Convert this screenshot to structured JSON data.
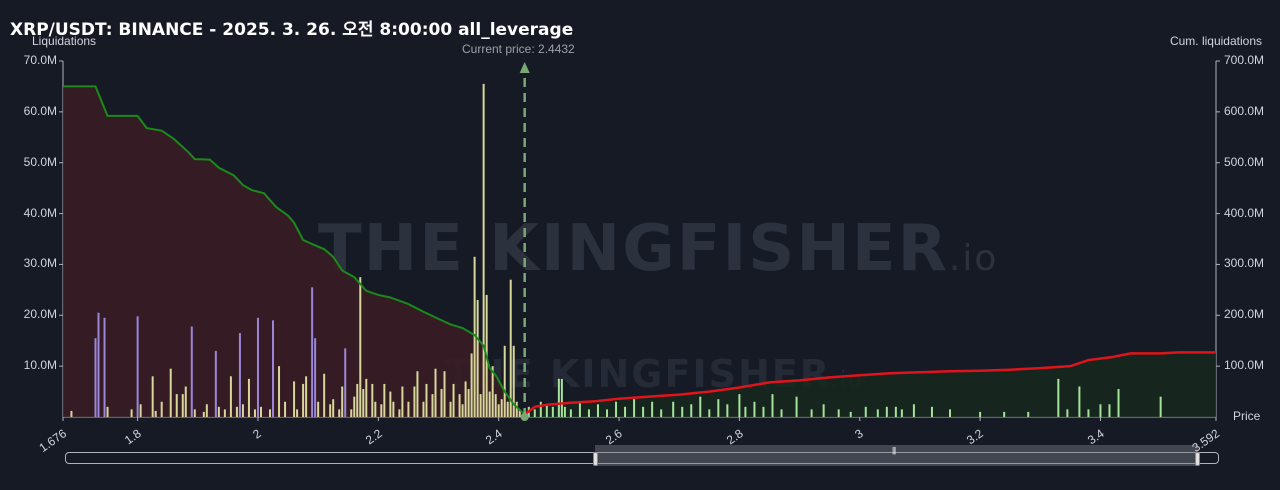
{
  "title": "XRP/USDT: BINANCE - 2025. 3. 26. 오전 8:00:00 all_leverage",
  "watermark": {
    "main": "THE KINGFISHER",
    "suffix": ".io"
  },
  "colors": {
    "background": "#161a25",
    "long_cum_line": "#1a8a1a",
    "short_cum_line": "#e0141a",
    "long_area": "#3a1c24",
    "short_area": "#16291e",
    "bar_yellow": "#d8d79a",
    "bar_purple": "#9b86d8",
    "bar_green": "#a6e39a",
    "current_price_line": "#7aa872"
  },
  "chart_data": {
    "type": "bar",
    "title": "XRP/USDT: BINANCE - 2025. 3. 26. 오전 8:00:00 all_leverage",
    "ylabel": "Liquidations",
    "y2label": "Cum. liquidations",
    "xlabel": "Price",
    "xlim": [
      1.676,
      3.592
    ],
    "ylim": [
      0,
      70000000
    ],
    "y2lim": [
      0,
      700000000
    ],
    "x_ticks": [
      "1.676",
      "1.8",
      "2",
      "2.2",
      "2.4",
      "2.6",
      "2.8",
      "3",
      "3.2",
      "3.4",
      "3.592"
    ],
    "x_tick_values": [
      1.676,
      1.8,
      2.0,
      2.2,
      2.4,
      2.6,
      2.8,
      3.0,
      3.2,
      3.4,
      3.592
    ],
    "y_ticks": [
      "10.0M",
      "20.0M",
      "30.0M",
      "40.0M",
      "50.0M",
      "60.0M",
      "70.0M"
    ],
    "y_tick_values": [
      10000000,
      20000000,
      30000000,
      40000000,
      50000000,
      60000000,
      70000000
    ],
    "y2_ticks": [
      "100.0M",
      "200.0M",
      "300.0M",
      "400.0M",
      "500.0M",
      "600.0M",
      "700.0M"
    ],
    "y2_tick_values": [
      100000000,
      200000000,
      300000000,
      400000000,
      500000000,
      600000000,
      700000000
    ],
    "current_price": 2.4432,
    "current_price_label": "Current price: 2.4432",
    "bars": [
      {
        "x": 1.69,
        "v": 1.2,
        "c": "y"
      },
      {
        "x": 1.73,
        "v": 15.5,
        "c": "p"
      },
      {
        "x": 1.735,
        "v": 20.5,
        "c": "p"
      },
      {
        "x": 1.745,
        "v": 19.5,
        "c": "p"
      },
      {
        "x": 1.75,
        "v": 2.0,
        "c": "y"
      },
      {
        "x": 1.79,
        "v": 1.5,
        "c": "y"
      },
      {
        "x": 1.8,
        "v": 19.8,
        "c": "p"
      },
      {
        "x": 1.805,
        "v": 2.5,
        "c": "y"
      },
      {
        "x": 1.825,
        "v": 8.0,
        "c": "y"
      },
      {
        "x": 1.83,
        "v": 1.2,
        "c": "y"
      },
      {
        "x": 1.84,
        "v": 3.0,
        "c": "y"
      },
      {
        "x": 1.855,
        "v": 9.5,
        "c": "y"
      },
      {
        "x": 1.865,
        "v": 4.5,
        "c": "y"
      },
      {
        "x": 1.875,
        "v": 4.5,
        "c": "y"
      },
      {
        "x": 1.88,
        "v": 6.0,
        "c": "y"
      },
      {
        "x": 1.89,
        "v": 17.8,
        "c": "p"
      },
      {
        "x": 1.895,
        "v": 1.5,
        "c": "y"
      },
      {
        "x": 1.91,
        "v": 1.0,
        "c": "y"
      },
      {
        "x": 1.915,
        "v": 2.5,
        "c": "y"
      },
      {
        "x": 1.93,
        "v": 13.0,
        "c": "p"
      },
      {
        "x": 1.935,
        "v": 2.0,
        "c": "y"
      },
      {
        "x": 1.945,
        "v": 1.5,
        "c": "y"
      },
      {
        "x": 1.955,
        "v": 8.0,
        "c": "y"
      },
      {
        "x": 1.965,
        "v": 2.0,
        "c": "y"
      },
      {
        "x": 1.97,
        "v": 16.5,
        "c": "p"
      },
      {
        "x": 1.975,
        "v": 2.5,
        "c": "y"
      },
      {
        "x": 1.985,
        "v": 7.5,
        "c": "y"
      },
      {
        "x": 1.995,
        "v": 1.5,
        "c": "y"
      },
      {
        "x": 2.0,
        "v": 19.5,
        "c": "p"
      },
      {
        "x": 2.005,
        "v": 2.0,
        "c": "y"
      },
      {
        "x": 2.02,
        "v": 1.5,
        "c": "y"
      },
      {
        "x": 2.025,
        "v": 19.0,
        "c": "p"
      },
      {
        "x": 2.035,
        "v": 10.0,
        "c": "y"
      },
      {
        "x": 2.045,
        "v": 3.0,
        "c": "y"
      },
      {
        "x": 2.06,
        "v": 7.0,
        "c": "y"
      },
      {
        "x": 2.065,
        "v": 1.5,
        "c": "y"
      },
      {
        "x": 2.075,
        "v": 6.5,
        "c": "y"
      },
      {
        "x": 2.08,
        "v": 8.0,
        "c": "y"
      },
      {
        "x": 2.09,
        "v": 25.5,
        "c": "p"
      },
      {
        "x": 2.095,
        "v": 15.5,
        "c": "p"
      },
      {
        "x": 2.1,
        "v": 3.0,
        "c": "y"
      },
      {
        "x": 2.11,
        "v": 8.5,
        "c": "y"
      },
      {
        "x": 2.12,
        "v": 2.5,
        "c": "y"
      },
      {
        "x": 2.125,
        "v": 3.5,
        "c": "y"
      },
      {
        "x": 2.135,
        "v": 1.5,
        "c": "y"
      },
      {
        "x": 2.14,
        "v": 6.0,
        "c": "y"
      },
      {
        "x": 2.145,
        "v": 13.5,
        "c": "p"
      },
      {
        "x": 2.155,
        "v": 1.5,
        "c": "y"
      },
      {
        "x": 2.16,
        "v": 4.0,
        "c": "y"
      },
      {
        "x": 2.165,
        "v": 6.5,
        "c": "y"
      },
      {
        "x": 2.17,
        "v": 27.5,
        "c": "y"
      },
      {
        "x": 2.175,
        "v": 5.5,
        "c": "y"
      },
      {
        "x": 2.18,
        "v": 7.5,
        "c": "y"
      },
      {
        "x": 2.19,
        "v": 6.5,
        "c": "y"
      },
      {
        "x": 2.195,
        "v": 3.0,
        "c": "y"
      },
      {
        "x": 2.205,
        "v": 2.5,
        "c": "y"
      },
      {
        "x": 2.21,
        "v": 6.5,
        "c": "y"
      },
      {
        "x": 2.22,
        "v": 5.0,
        "c": "y"
      },
      {
        "x": 2.225,
        "v": 3.0,
        "c": "y"
      },
      {
        "x": 2.235,
        "v": 1.5,
        "c": "y"
      },
      {
        "x": 2.24,
        "v": 6.0,
        "c": "y"
      },
      {
        "x": 2.25,
        "v": 3.0,
        "c": "y"
      },
      {
        "x": 2.26,
        "v": 6.0,
        "c": "y"
      },
      {
        "x": 2.265,
        "v": 9.0,
        "c": "y"
      },
      {
        "x": 2.275,
        "v": 3.0,
        "c": "y"
      },
      {
        "x": 2.28,
        "v": 6.5,
        "c": "y"
      },
      {
        "x": 2.29,
        "v": 4.5,
        "c": "y"
      },
      {
        "x": 2.295,
        "v": 9.5,
        "c": "y"
      },
      {
        "x": 2.305,
        "v": 5.5,
        "c": "y"
      },
      {
        "x": 2.31,
        "v": 9.0,
        "c": "y"
      },
      {
        "x": 2.32,
        "v": 3.0,
        "c": "y"
      },
      {
        "x": 2.325,
        "v": 6.5,
        "c": "y"
      },
      {
        "x": 2.335,
        "v": 4.5,
        "c": "y"
      },
      {
        "x": 2.34,
        "v": 2.5,
        "c": "y"
      },
      {
        "x": 2.345,
        "v": 7.0,
        "c": "y"
      },
      {
        "x": 2.35,
        "v": 5.5,
        "c": "y"
      },
      {
        "x": 2.355,
        "v": 12.5,
        "c": "y"
      },
      {
        "x": 2.36,
        "v": 31.5,
        "c": "y"
      },
      {
        "x": 2.365,
        "v": 23.0,
        "c": "y"
      },
      {
        "x": 2.37,
        "v": 4.5,
        "c": "y"
      },
      {
        "x": 2.375,
        "v": 65.5,
        "c": "y"
      },
      {
        "x": 2.38,
        "v": 24.0,
        "c": "y"
      },
      {
        "x": 2.385,
        "v": 5.0,
        "c": "y"
      },
      {
        "x": 2.39,
        "v": 10.0,
        "c": "y"
      },
      {
        "x": 2.395,
        "v": 4.5,
        "c": "y"
      },
      {
        "x": 2.4,
        "v": 2.5,
        "c": "y"
      },
      {
        "x": 2.405,
        "v": 3.5,
        "c": "y"
      },
      {
        "x": 2.41,
        "v": 14.0,
        "c": "y"
      },
      {
        "x": 2.415,
        "v": 3.0,
        "c": "y"
      },
      {
        "x": 2.42,
        "v": 27.0,
        "c": "y"
      },
      {
        "x": 2.425,
        "v": 14.0,
        "c": "y"
      },
      {
        "x": 2.43,
        "v": 3.0,
        "c": "y"
      },
      {
        "x": 2.435,
        "v": 1.5,
        "c": "y"
      },
      {
        "x": 2.45,
        "v": 2.0,
        "c": "g"
      },
      {
        "x": 2.46,
        "v": 1.5,
        "c": "g"
      },
      {
        "x": 2.47,
        "v": 3.0,
        "c": "g"
      },
      {
        "x": 2.48,
        "v": 2.5,
        "c": "g"
      },
      {
        "x": 2.49,
        "v": 2.0,
        "c": "g"
      },
      {
        "x": 2.5,
        "v": 7.5,
        "c": "g"
      },
      {
        "x": 2.505,
        "v": 7.5,
        "c": "g"
      },
      {
        "x": 2.51,
        "v": 2.0,
        "c": "g"
      },
      {
        "x": 2.52,
        "v": 1.5,
        "c": "g"
      },
      {
        "x": 2.535,
        "v": 3.0,
        "c": "g"
      },
      {
        "x": 2.55,
        "v": 1.5,
        "c": "g"
      },
      {
        "x": 2.565,
        "v": 2.5,
        "c": "g"
      },
      {
        "x": 2.58,
        "v": 1.5,
        "c": "g"
      },
      {
        "x": 2.595,
        "v": 3.0,
        "c": "g"
      },
      {
        "x": 2.61,
        "v": 2.0,
        "c": "g"
      },
      {
        "x": 2.625,
        "v": 3.5,
        "c": "g"
      },
      {
        "x": 2.64,
        "v": 2.0,
        "c": "g"
      },
      {
        "x": 2.655,
        "v": 3.0,
        "c": "g"
      },
      {
        "x": 2.67,
        "v": 1.5,
        "c": "g"
      },
      {
        "x": 2.69,
        "v": 3.0,
        "c": "g"
      },
      {
        "x": 2.705,
        "v": 2.0,
        "c": "g"
      },
      {
        "x": 2.72,
        "v": 2.5,
        "c": "g"
      },
      {
        "x": 2.735,
        "v": 4.0,
        "c": "g"
      },
      {
        "x": 2.75,
        "v": 1.5,
        "c": "g"
      },
      {
        "x": 2.765,
        "v": 3.5,
        "c": "g"
      },
      {
        "x": 2.78,
        "v": 2.5,
        "c": "g"
      },
      {
        "x": 2.8,
        "v": 4.5,
        "c": "g"
      },
      {
        "x": 2.81,
        "v": 2.0,
        "c": "g"
      },
      {
        "x": 2.825,
        "v": 3.0,
        "c": "g"
      },
      {
        "x": 2.84,
        "v": 2.0,
        "c": "g"
      },
      {
        "x": 2.855,
        "v": 4.5,
        "c": "g"
      },
      {
        "x": 2.87,
        "v": 1.5,
        "c": "g"
      },
      {
        "x": 2.895,
        "v": 4.0,
        "c": "g"
      },
      {
        "x": 2.92,
        "v": 1.5,
        "c": "g"
      },
      {
        "x": 2.94,
        "v": 2.5,
        "c": "g"
      },
      {
        "x": 2.965,
        "v": 1.5,
        "c": "g"
      },
      {
        "x": 2.985,
        "v": 1.0,
        "c": "g"
      },
      {
        "x": 3.01,
        "v": 2.0,
        "c": "g"
      },
      {
        "x": 3.03,
        "v": 1.5,
        "c": "g"
      },
      {
        "x": 3.045,
        "v": 2.0,
        "c": "g"
      },
      {
        "x": 3.06,
        "v": 2.0,
        "c": "g"
      },
      {
        "x": 3.07,
        "v": 1.5,
        "c": "g"
      },
      {
        "x": 3.09,
        "v": 2.5,
        "c": "g"
      },
      {
        "x": 3.12,
        "v": 2.0,
        "c": "g"
      },
      {
        "x": 3.15,
        "v": 1.5,
        "c": "g"
      },
      {
        "x": 3.2,
        "v": 1.0,
        "c": "g"
      },
      {
        "x": 3.24,
        "v": 1.0,
        "c": "g"
      },
      {
        "x": 3.28,
        "v": 1.0,
        "c": "g"
      },
      {
        "x": 3.33,
        "v": 7.5,
        "c": "g"
      },
      {
        "x": 3.345,
        "v": 1.5,
        "c": "g"
      },
      {
        "x": 3.365,
        "v": 6.0,
        "c": "g"
      },
      {
        "x": 3.38,
        "v": 1.5,
        "c": "g"
      },
      {
        "x": 3.4,
        "v": 2.5,
        "c": "g"
      },
      {
        "x": 3.415,
        "v": 2.5,
        "c": "g"
      },
      {
        "x": 3.43,
        "v": 5.5,
        "c": "g"
      },
      {
        "x": 3.5,
        "v": 4.0,
        "c": "g"
      }
    ],
    "cum_long": [
      [
        1.676,
        650
      ],
      [
        1.73,
        650
      ],
      [
        1.75,
        592
      ],
      [
        1.8,
        592
      ],
      [
        1.815,
        568
      ],
      [
        1.84,
        563
      ],
      [
        1.86,
        547
      ],
      [
        1.885,
        520
      ],
      [
        1.895,
        507
      ],
      [
        1.92,
        506
      ],
      [
        1.935,
        490
      ],
      [
        1.96,
        475
      ],
      [
        1.975,
        456
      ],
      [
        1.99,
        446
      ],
      [
        2.01,
        440
      ],
      [
        2.03,
        413
      ],
      [
        2.05,
        396
      ],
      [
        2.06,
        382
      ],
      [
        2.075,
        348
      ],
      [
        2.09,
        340
      ],
      [
        2.11,
        330
      ],
      [
        2.125,
        315
      ],
      [
        2.14,
        288
      ],
      [
        2.16,
        275
      ],
      [
        2.18,
        248
      ],
      [
        2.2,
        240
      ],
      [
        2.22,
        235
      ],
      [
        2.25,
        222
      ],
      [
        2.275,
        207
      ],
      [
        2.3,
        193
      ],
      [
        2.32,
        182
      ],
      [
        2.34,
        175
      ],
      [
        2.36,
        161
      ],
      [
        2.375,
        140
      ],
      [
        2.385,
        96
      ],
      [
        2.395,
        82
      ],
      [
        2.41,
        50
      ],
      [
        2.425,
        25
      ],
      [
        2.4432,
        5
      ]
    ],
    "cum_short": [
      [
        2.4432,
        5
      ],
      [
        2.46,
        20
      ],
      [
        2.48,
        24
      ],
      [
        2.52,
        28
      ],
      [
        2.56,
        31
      ],
      [
        2.6,
        36
      ],
      [
        2.65,
        40
      ],
      [
        2.7,
        44
      ],
      [
        2.75,
        50
      ],
      [
        2.8,
        58
      ],
      [
        2.85,
        68
      ],
      [
        2.9,
        72
      ],
      [
        2.95,
        78
      ],
      [
        3.0,
        82
      ],
      [
        3.05,
        86
      ],
      [
        3.1,
        88
      ],
      [
        3.15,
        90
      ],
      [
        3.2,
        91
      ],
      [
        3.25,
        93
      ],
      [
        3.3,
        96
      ],
      [
        3.35,
        100
      ],
      [
        3.38,
        112
      ],
      [
        3.42,
        118
      ],
      [
        3.45,
        125
      ],
      [
        3.5,
        125
      ],
      [
        3.53,
        127
      ],
      [
        3.592,
        127
      ]
    ]
  }
}
